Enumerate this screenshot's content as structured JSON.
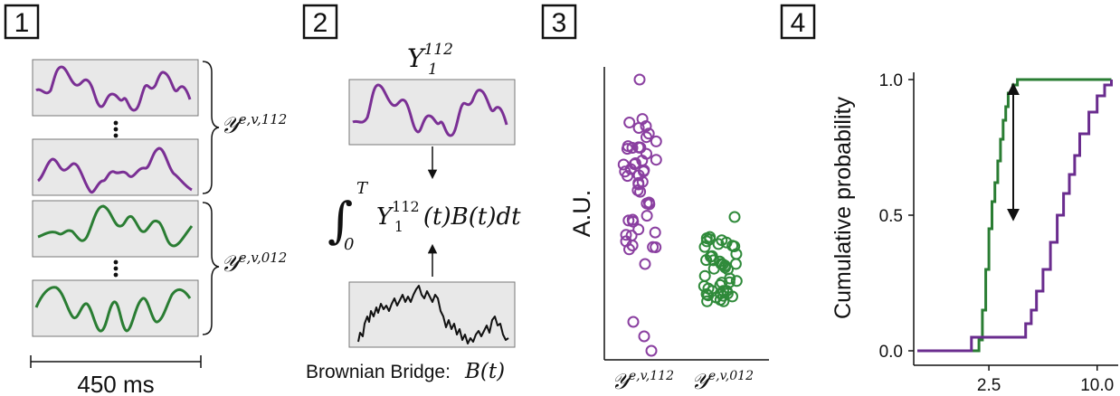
{
  "panels": [
    {
      "number": "1"
    },
    {
      "number": "2"
    },
    {
      "number": "3"
    },
    {
      "number": "4"
    }
  ],
  "panel1": {
    "brace_top_label": "𝒴ᵉ,ᵛ,¹¹²",
    "brace_top_base": "𝒴",
    "brace_top_sup": "e,v,112",
    "brace_bottom_base": "𝒴",
    "brace_bottom_sup": "e,v,012",
    "scale_label": "450 ms"
  },
  "panel2": {
    "title_base": "Y",
    "title_sub": "1",
    "title_sup": "112",
    "integral_lower": "0",
    "integral_upper": "T",
    "integrand_base": "Y",
    "integrand_sub": "1",
    "integrand_sup": "112",
    "integrand_rest": "(t)B(t)dt",
    "bridge_label": "Brownian Bridge:",
    "bridge_math": "B(t)"
  },
  "panel3": {
    "ylabel": "A.U.",
    "x_base": "𝒴",
    "x1_sup": "e,v,112",
    "x2_sup": "e,v,012",
    "colors": {
      "purple": "#8a3fa0",
      "green": "#2f8a3a"
    }
  },
  "chart_data": {
    "type": "line",
    "title": "",
    "xlabel": "",
    "ylabel": "Cumulative probability",
    "x_ticks": [
      "2.5",
      "10.0"
    ],
    "y_ticks": [
      "0.0",
      "0.5",
      "1.0"
    ],
    "ylim": [
      0,
      1
    ],
    "series": [
      {
        "color": "#2a7d33",
        "x": [
          1.0,
          2.2,
          2.3,
          2.4,
          2.5,
          2.6,
          2.7,
          2.8,
          2.9,
          3.0,
          3.1,
          3.2,
          3.4,
          3.6,
          5.0,
          12.0
        ],
        "y": [
          0.0,
          0.04,
          0.15,
          0.3,
          0.45,
          0.55,
          0.62,
          0.7,
          0.78,
          0.85,
          0.9,
          0.95,
          0.98,
          1.0,
          1.0,
          1.0
        ]
      },
      {
        "color": "#6a2c8e",
        "x": [
          1.0,
          2.0,
          3.5,
          4.0,
          4.3,
          4.6,
          5.0,
          5.5,
          6.0,
          6.5,
          7.0,
          7.5,
          8.0,
          9.0,
          10.0,
          11.0,
          12.0
        ],
        "y": [
          0.0,
          0.05,
          0.05,
          0.1,
          0.15,
          0.22,
          0.3,
          0.4,
          0.5,
          0.58,
          0.65,
          0.72,
          0.8,
          0.88,
          0.94,
          0.98,
          1.0
        ]
      }
    ]
  }
}
